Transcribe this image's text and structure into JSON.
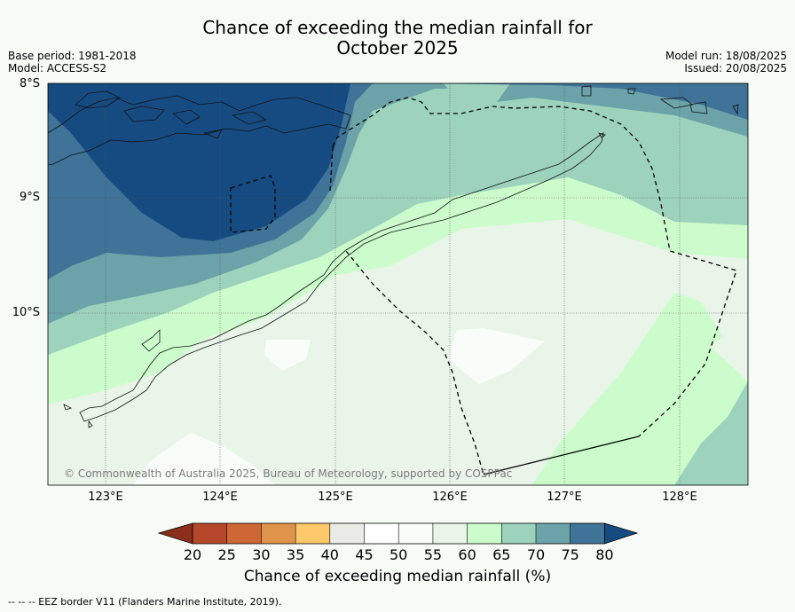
{
  "title": {
    "line1": "Chance of exceeding the median rainfall for",
    "line2": "October 2025"
  },
  "meta": {
    "base_period": "Base period: 1981-2018",
    "model": "Model: ACCESS-S2",
    "model_run": "Model run: 18/08/2025",
    "issued": "Issued: 20/08/2025"
  },
  "map": {
    "lat_ticks": [
      "8°S",
      "9°S",
      "10°S"
    ],
    "lon_ticks": [
      "123°E",
      "124°E",
      "125°E",
      "126°E",
      "127°E",
      "128°E"
    ],
    "copyright": "© Commonwealth of Australia 2025, Bureau of Meteorology, supported by COSPPac",
    "region": {
      "lon_range": [
        122.5,
        128.6
      ],
      "lat_range": [
        -11.5,
        -8.0
      ]
    }
  },
  "colorbar": {
    "title": "Chance of exceeding median rainfall (%)",
    "labels": [
      "20",
      "25",
      "30",
      "35",
      "40",
      "45",
      "50",
      "55",
      "60",
      "65",
      "70",
      "75",
      "80"
    ],
    "colors": [
      "#8b2f1c",
      "#b5482a",
      "#cd6835",
      "#e0944a",
      "#fdc96a",
      "#ebebe6",
      "#ffffff",
      "#f9fdf9",
      "#e9f5e9",
      "#ccfccc",
      "#9dd3bd",
      "#6ba3a8",
      "#3f7397",
      "#164b82"
    ]
  },
  "footnote": "--  --  -- EEZ border V11 (Flanders Marine Institute, 2019)."
}
